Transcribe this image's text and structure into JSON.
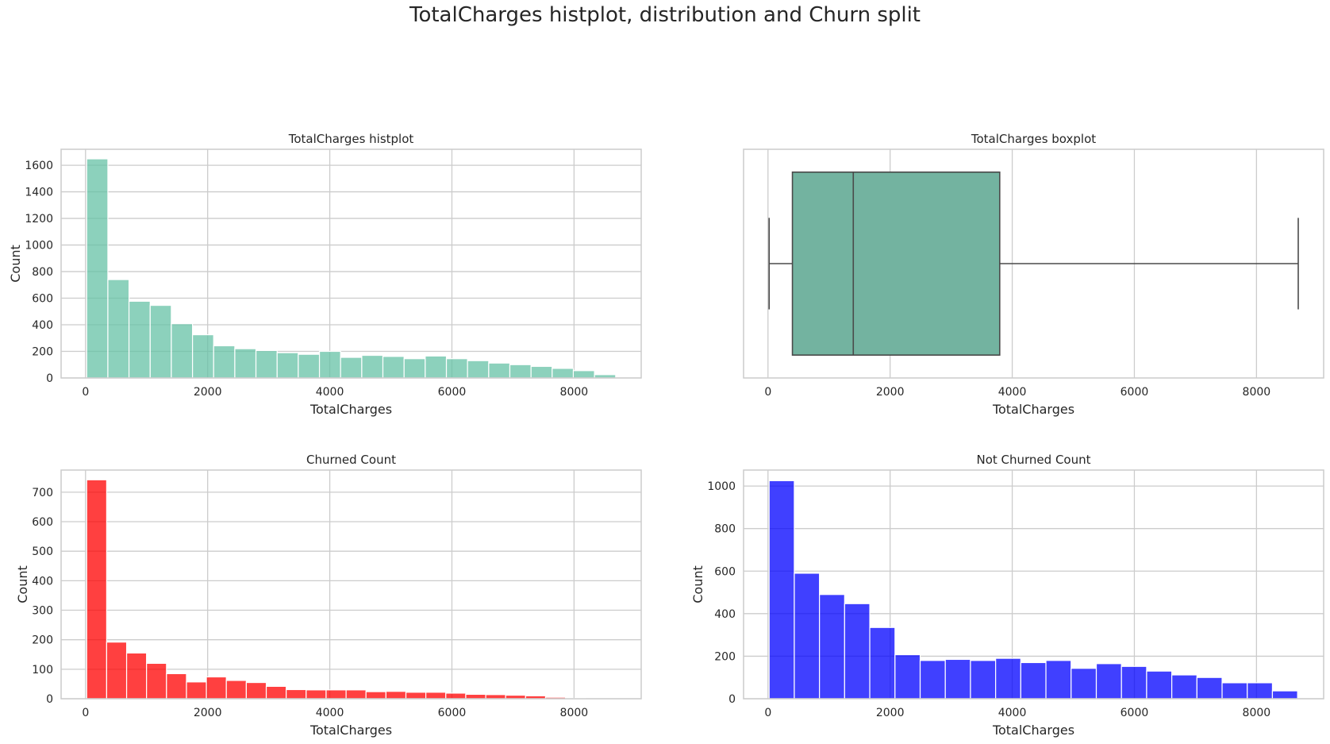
{
  "suptitle": "TotalCharges histplot, distribution and Churn split",
  "chart_data": [
    {
      "type": "bar",
      "subtype": "histogram",
      "title": "TotalCharges histplot",
      "xlabel": "TotalCharges",
      "ylabel": "Count",
      "xlim": [
        -400,
        9100
      ],
      "ylim": [
        0,
        1720
      ],
      "xticks": [
        0,
        2000,
        4000,
        6000,
        8000
      ],
      "yticks": [
        0,
        200,
        400,
        600,
        800,
        1000,
        1200,
        1400,
        1600
      ],
      "grid": true,
      "color": "#66c2a5",
      "bin_edges": [
        19,
        366,
        712,
        1059,
        1405,
        1752,
        2098,
        2445,
        2791,
        3138,
        3484,
        3831,
        4177,
        4524,
        4870,
        5217,
        5563,
        5910,
        6256,
        6603,
        6949,
        7296,
        7642,
        7989,
        8335,
        8682
      ],
      "values": [
        1648,
        740,
        577,
        546,
        408,
        325,
        242,
        220,
        206,
        190,
        178,
        200,
        155,
        170,
        162,
        145,
        165,
        145,
        130,
        112,
        100,
        87,
        72,
        55,
        25
      ]
    },
    {
      "type": "box",
      "title": "TotalCharges boxplot",
      "xlabel": "TotalCharges",
      "xlim": [
        -400,
        9100
      ],
      "xticks": [
        0,
        2000,
        4000,
        6000,
        8000
      ],
      "grid": true,
      "color": "#66c2a5",
      "whisker_low": 19,
      "q1": 400,
      "median": 1397,
      "q3": 3795,
      "whisker_high": 8684
    },
    {
      "type": "bar",
      "subtype": "histogram",
      "title": "Churned Count",
      "xlabel": "TotalCharges",
      "ylabel": "Count",
      "xlim": [
        -400,
        9100
      ],
      "ylim": [
        0,
        775
      ],
      "xticks": [
        0,
        2000,
        4000,
        6000,
        8000
      ],
      "yticks": [
        0,
        100,
        200,
        300,
        400,
        500,
        600,
        700
      ],
      "grid": true,
      "color": "#ff0000",
      "bin_edges": [
        19,
        346,
        673,
        999,
        1326,
        1653,
        1979,
        2306,
        2633,
        2960,
        3286,
        3613,
        3940,
        4267,
        4593,
        4920,
        5247,
        5573,
        5900,
        6227,
        6554,
        6880,
        7207,
        7534,
        7860,
        8187
      ],
      "values": [
        742,
        192,
        155,
        120,
        85,
        57,
        74,
        62,
        55,
        42,
        31,
        30,
        30,
        30,
        24,
        25,
        22,
        22,
        19,
        15,
        14,
        12,
        10,
        5,
        1
      ]
    },
    {
      "type": "bar",
      "subtype": "histogram",
      "title": "Not Churned Count",
      "xlabel": "TotalCharges",
      "ylabel": "Count",
      "xlim": [
        -400,
        9100
      ],
      "ylim": [
        0,
        1075
      ],
      "xticks": [
        0,
        2000,
        4000,
        6000,
        8000
      ],
      "yticks": [
        0,
        200,
        400,
        600,
        800,
        1000
      ],
      "grid": true,
      "color": "#0000ff",
      "bin_edges": [
        19,
        431,
        843,
        1255,
        1667,
        2080,
        2492,
        2904,
        3316,
        3728,
        4140,
        4552,
        4964,
        5377,
        5789,
        6201,
        6613,
        7025,
        7437,
        7849,
        8261,
        8673
      ],
      "values": [
        1025,
        590,
        490,
        447,
        335,
        207,
        180,
        185,
        180,
        190,
        170,
        180,
        143,
        165,
        152,
        130,
        112,
        100,
        75,
        75,
        37
      ]
    }
  ]
}
